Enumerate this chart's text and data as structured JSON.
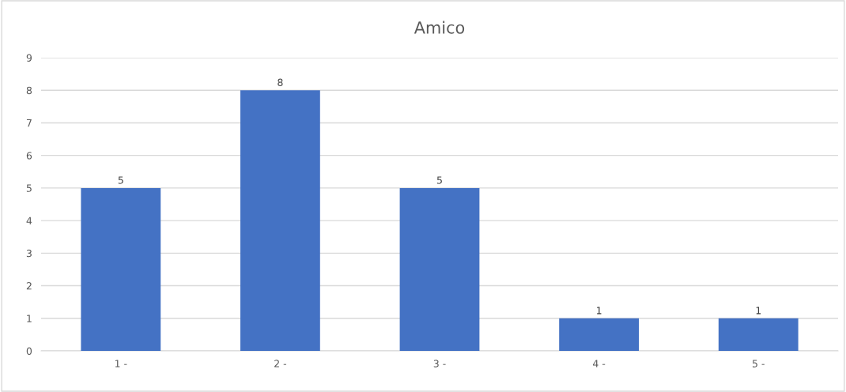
{
  "chart_data": {
    "type": "bar",
    "title": "Amico",
    "categories": [
      "1 -",
      "2 -",
      "3 -",
      "4 -",
      "5 -"
    ],
    "values": [
      5,
      8,
      5,
      1,
      1
    ],
    "color": "#4472c4",
    "ylim": [
      0,
      9
    ],
    "yticks": [
      0,
      1,
      2,
      3,
      4,
      5,
      6,
      7,
      8,
      9
    ],
    "grid": "y",
    "data_labels": true
  }
}
